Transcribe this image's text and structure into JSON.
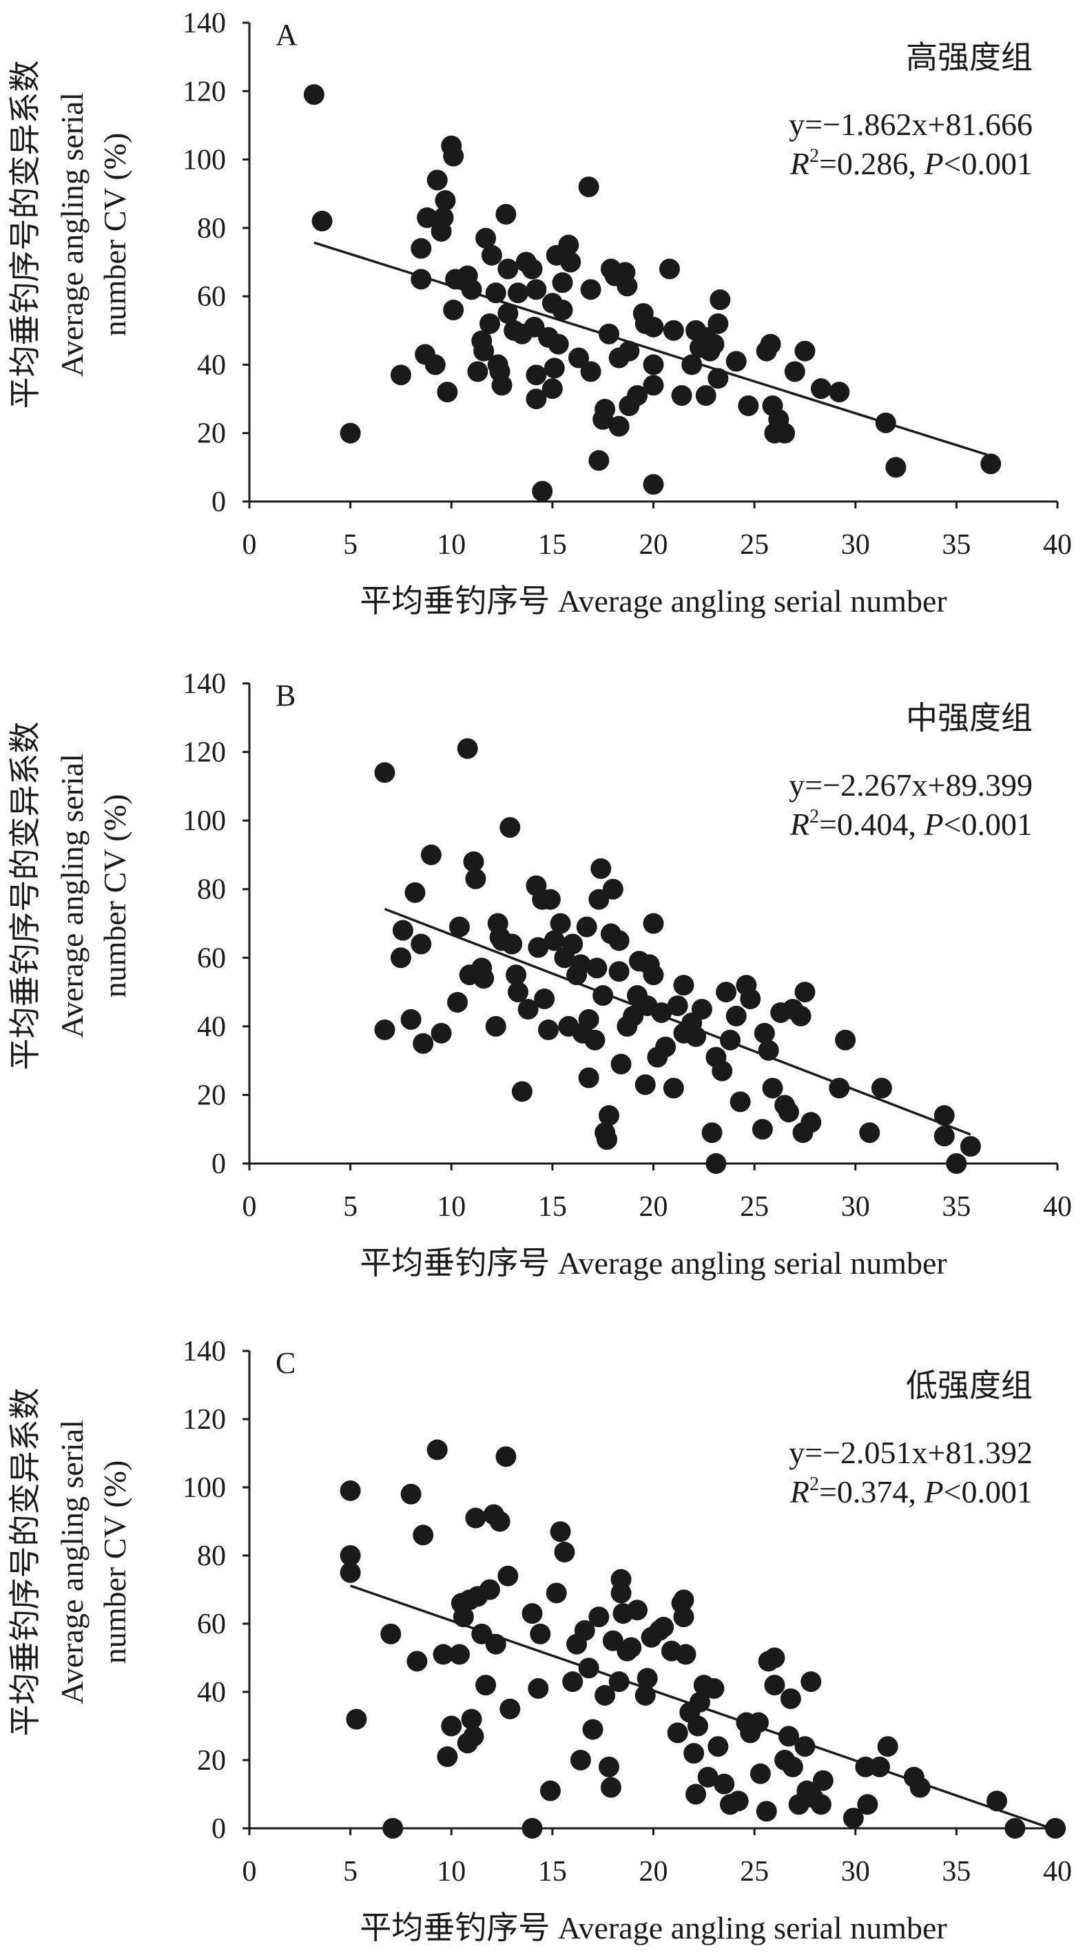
{
  "chart_data": [
    {
      "type": "scatter",
      "panel_label": "A",
      "group": "高强度组",
      "equation": "y=−1.862x+81.666",
      "slope": -1.862,
      "intercept": 81.666,
      "stats": {
        "r2_label": "R",
        "r2_sup": "2",
        "r2_text": "=0.286, ",
        "p_label": "P",
        "p_text": "<0.001"
      },
      "fit_range": [
        3.2,
        36.7
      ],
      "xlabel": "平均垂钓序号 Average angling serial number",
      "ylabel": [
        "平均垂钓序号的变异系数",
        "Average angling serial",
        "number CV (%)"
      ],
      "xlim": [
        0,
        40
      ],
      "ylim": [
        0,
        140
      ],
      "xticks": [
        "0",
        "5",
        "10",
        "15",
        "20",
        "25",
        "30",
        "35",
        "40"
      ],
      "yticks": [
        "0",
        "20",
        "40",
        "60",
        "80",
        "100",
        "120",
        "140"
      ],
      "points": [
        [
          3.2,
          119
        ],
        [
          3.6,
          82
        ],
        [
          5,
          20
        ],
        [
          7.5,
          37
        ],
        [
          8.5,
          65
        ],
        [
          8.5,
          74
        ],
        [
          8.7,
          43
        ],
        [
          8.8,
          83
        ],
        [
          9.2,
          40
        ],
        [
          9.3,
          94
        ],
        [
          9.5,
          79
        ],
        [
          9.6,
          83
        ],
        [
          9.7,
          88
        ],
        [
          9.8,
          32
        ],
        [
          10,
          104
        ],
        [
          10.1,
          101
        ],
        [
          10.1,
          56
        ],
        [
          10.2,
          65
        ],
        [
          10.8,
          66
        ],
        [
          11,
          62
        ],
        [
          11.3,
          38
        ],
        [
          11.5,
          47
        ],
        [
          11.6,
          44
        ],
        [
          11.7,
          77
        ],
        [
          11.9,
          52
        ],
        [
          12,
          72
        ],
        [
          12.2,
          61
        ],
        [
          12.3,
          40
        ],
        [
          12.4,
          38
        ],
        [
          12.5,
          34
        ],
        [
          12.7,
          84
        ],
        [
          12.8,
          68
        ],
        [
          12.8,
          55
        ],
        [
          13.1,
          50
        ],
        [
          13.3,
          61
        ],
        [
          13.5,
          49
        ],
        [
          13.7,
          70
        ],
        [
          14,
          68
        ],
        [
          14.1,
          51
        ],
        [
          14.2,
          62
        ],
        [
          14.2,
          37
        ],
        [
          14.2,
          30
        ],
        [
          14.5,
          3
        ],
        [
          14.8,
          48
        ],
        [
          15,
          58
        ],
        [
          15,
          33
        ],
        [
          15.1,
          39
        ],
        [
          15.2,
          72
        ],
        [
          15.3,
          46
        ],
        [
          15.5,
          64
        ],
        [
          15.5,
          56
        ],
        [
          15.8,
          75
        ],
        [
          15.9,
          70
        ],
        [
          16.3,
          42
        ],
        [
          16.8,
          92
        ],
        [
          16.9,
          38
        ],
        [
          16.9,
          62
        ],
        [
          17.3,
          12
        ],
        [
          17.5,
          24
        ],
        [
          17.6,
          27
        ],
        [
          17.8,
          49
        ],
        [
          17.9,
          68
        ],
        [
          18.1,
          66
        ],
        [
          18.3,
          42
        ],
        [
          18.3,
          22
        ],
        [
          18.6,
          67
        ],
        [
          18.7,
          63
        ],
        [
          18.8,
          44
        ],
        [
          18.8,
          28
        ],
        [
          19.2,
          31
        ],
        [
          19.5,
          55
        ],
        [
          19.6,
          52
        ],
        [
          20,
          51
        ],
        [
          20,
          40
        ],
        [
          20,
          34
        ],
        [
          20,
          5
        ],
        [
          20.8,
          68
        ],
        [
          21,
          50
        ],
        [
          21.4,
          31
        ],
        [
          21.9,
          40
        ],
        [
          22.1,
          50
        ],
        [
          22.3,
          45
        ],
        [
          22.6,
          48
        ],
        [
          22.6,
          31
        ],
        [
          22.8,
          44
        ],
        [
          23,
          46
        ],
        [
          23.2,
          36
        ],
        [
          23.2,
          52
        ],
        [
          23.3,
          59
        ],
        [
          24.1,
          41
        ],
        [
          24.7,
          28
        ],
        [
          25.6,
          44
        ],
        [
          25.8,
          46
        ],
        [
          25.9,
          28
        ],
        [
          26,
          20
        ],
        [
          26.2,
          24
        ],
        [
          26.5,
          20
        ],
        [
          27,
          38
        ],
        [
          27.5,
          44
        ],
        [
          28.3,
          33
        ],
        [
          29.2,
          32
        ],
        [
          31.5,
          23
        ],
        [
          32,
          10
        ],
        [
          36.7,
          11
        ]
      ]
    },
    {
      "type": "scatter",
      "panel_label": "B",
      "group": "中强度组",
      "equation": "y=−2.267x+89.399",
      "slope": -2.267,
      "intercept": 89.399,
      "stats": {
        "r2_label": "R",
        "r2_sup": "2",
        "r2_text": "=0.404, ",
        "p_label": "P",
        "p_text": "<0.001"
      },
      "fit_range": [
        6.7,
        35.7
      ],
      "xlabel": "平均垂钓序号 Average angling serial number",
      "ylabel": [
        "平均垂钓序号的变异系数",
        "Average angling serial",
        "number CV (%)"
      ],
      "xlim": [
        0,
        40
      ],
      "ylim": [
        0,
        140
      ],
      "xticks": [
        "0",
        "5",
        "10",
        "15",
        "20",
        "25",
        "30",
        "35",
        "40"
      ],
      "yticks": [
        "0",
        "20",
        "40",
        "60",
        "80",
        "100",
        "120",
        "140"
      ],
      "points": [
        [
          6.7,
          114
        ],
        [
          6.7,
          39
        ],
        [
          7.5,
          60
        ],
        [
          7.6,
          68
        ],
        [
          8,
          42
        ],
        [
          8.2,
          79
        ],
        [
          8.5,
          64
        ],
        [
          8.6,
          35
        ],
        [
          9,
          90
        ],
        [
          9.5,
          38
        ],
        [
          10.3,
          47
        ],
        [
          10.4,
          69
        ],
        [
          10.8,
          121
        ],
        [
          10.9,
          55
        ],
        [
          11.1,
          88
        ],
        [
          11.2,
          83
        ],
        [
          11.5,
          57
        ],
        [
          11.6,
          54
        ],
        [
          12.2,
          40
        ],
        [
          12.3,
          70
        ],
        [
          12.4,
          66
        ],
        [
          12.5,
          65
        ],
        [
          12.9,
          98
        ],
        [
          13,
          64
        ],
        [
          13.2,
          55
        ],
        [
          13.3,
          50
        ],
        [
          13.5,
          21
        ],
        [
          13.8,
          45
        ],
        [
          14.2,
          81
        ],
        [
          14.3,
          63
        ],
        [
          14.5,
          77
        ],
        [
          14.6,
          48
        ],
        [
          14.8,
          39
        ],
        [
          14.9,
          77
        ],
        [
          15.1,
          65
        ],
        [
          15.4,
          70
        ],
        [
          15.6,
          60
        ],
        [
          15.8,
          40
        ],
        [
          16,
          64
        ],
        [
          16.2,
          55
        ],
        [
          16.4,
          58
        ],
        [
          16.5,
          38
        ],
        [
          16.7,
          69
        ],
        [
          16.8,
          42
        ],
        [
          16.8,
          25
        ],
        [
          17.1,
          36
        ],
        [
          17.2,
          57
        ],
        [
          17.3,
          77
        ],
        [
          17.4,
          86
        ],
        [
          17.5,
          49
        ],
        [
          17.6,
          9
        ],
        [
          17.7,
          7
        ],
        [
          17.8,
          14
        ],
        [
          17.9,
          67
        ],
        [
          18,
          80
        ],
        [
          18.3,
          65
        ],
        [
          18.3,
          56
        ],
        [
          18.4,
          29
        ],
        [
          18.7,
          40
        ],
        [
          19,
          43
        ],
        [
          19.2,
          49
        ],
        [
          19.3,
          59
        ],
        [
          19.6,
          23
        ],
        [
          19.7,
          46
        ],
        [
          19.8,
          58
        ],
        [
          20,
          55
        ],
        [
          20,
          70
        ],
        [
          20.2,
          31
        ],
        [
          20.4,
          44
        ],
        [
          20.6,
          34
        ],
        [
          21,
          22
        ],
        [
          21.2,
          46
        ],
        [
          21.5,
          52
        ],
        [
          21.5,
          38
        ],
        [
          21.9,
          41
        ],
        [
          22.1,
          37
        ],
        [
          22.4,
          45
        ],
        [
          22.9,
          9
        ],
        [
          23.1,
          31
        ],
        [
          23.1,
          0
        ],
        [
          23.4,
          27
        ],
        [
          23.6,
          50
        ],
        [
          23.8,
          36
        ],
        [
          24.1,
          43
        ],
        [
          24.3,
          18
        ],
        [
          24.6,
          52
        ],
        [
          24.8,
          48
        ],
        [
          25.4,
          10
        ],
        [
          25.5,
          38
        ],
        [
          25.7,
          33
        ],
        [
          25.9,
          22
        ],
        [
          26.3,
          44
        ],
        [
          26.5,
          17
        ],
        [
          26.7,
          15
        ],
        [
          26.9,
          45
        ],
        [
          27.3,
          43
        ],
        [
          27.4,
          9
        ],
        [
          27.5,
          50
        ],
        [
          27.8,
          12
        ],
        [
          29.2,
          22
        ],
        [
          29.5,
          36
        ],
        [
          30.7,
          9
        ],
        [
          31.3,
          22
        ],
        [
          34.4,
          14
        ],
        [
          34.4,
          8
        ],
        [
          35,
          0
        ],
        [
          35.7,
          5
        ]
      ]
    },
    {
      "type": "scatter",
      "panel_label": "C",
      "group": "低强度组",
      "equation": "y=−2.051x+81.392",
      "slope": -2.051,
      "intercept": 81.392,
      "stats": {
        "r2_label": "R",
        "r2_sup": "2",
        "r2_text": "=0.374, ",
        "p_label": "P",
        "p_text": "<0.001"
      },
      "fit_range": [
        5,
        39.9
      ],
      "xlabel": "平均垂钓序号 Average angling serial number",
      "ylabel": [
        "平均垂钓序号的变异系数",
        "Average angling serial",
        "number CV (%)"
      ],
      "xlim": [
        0,
        40
      ],
      "ylim": [
        0,
        140
      ],
      "xticks": [
        "0",
        "5",
        "10",
        "15",
        "20",
        "25",
        "30",
        "35",
        "40"
      ],
      "yticks": [
        "0",
        "20",
        "40",
        "60",
        "80",
        "100",
        "120",
        "140"
      ],
      "points": [
        [
          5,
          99
        ],
        [
          5,
          80
        ],
        [
          5,
          75
        ],
        [
          5.3,
          32
        ],
        [
          7,
          57
        ],
        [
          7.1,
          0
        ],
        [
          8,
          98
        ],
        [
          8.3,
          49
        ],
        [
          8.6,
          86
        ],
        [
          9.3,
          111
        ],
        [
          9.6,
          51
        ],
        [
          9.8,
          21
        ],
        [
          10,
          30
        ],
        [
          10.4,
          51
        ],
        [
          10.5,
          66
        ],
        [
          10.6,
          62
        ],
        [
          10.8,
          25
        ],
        [
          10.9,
          67
        ],
        [
          11,
          32
        ],
        [
          11.1,
          27
        ],
        [
          11.2,
          91
        ],
        [
          11.3,
          68
        ],
        [
          11.5,
          57
        ],
        [
          11.7,
          42
        ],
        [
          11.9,
          70
        ],
        [
          12.1,
          92
        ],
        [
          12.2,
          54
        ],
        [
          12.4,
          90
        ],
        [
          12.7,
          109
        ],
        [
          12.8,
          74
        ],
        [
          12.9,
          35
        ],
        [
          14,
          63
        ],
        [
          14,
          0
        ],
        [
          14.3,
          41
        ],
        [
          14.4,
          57
        ],
        [
          14.9,
          11
        ],
        [
          15.2,
          69
        ],
        [
          15.4,
          87
        ],
        [
          15.6,
          81
        ],
        [
          16,
          43
        ],
        [
          16.2,
          54
        ],
        [
          16.4,
          20
        ],
        [
          16.6,
          58
        ],
        [
          16.8,
          47
        ],
        [
          17,
          29
        ],
        [
          17.3,
          62
        ],
        [
          17.6,
          39
        ],
        [
          17.8,
          18
        ],
        [
          17.9,
          12
        ],
        [
          18,
          55
        ],
        [
          18.3,
          43
        ],
        [
          18.4,
          73
        ],
        [
          18.4,
          69
        ],
        [
          18.5,
          63
        ],
        [
          18.7,
          52
        ],
        [
          18.9,
          53
        ],
        [
          19.2,
          64
        ],
        [
          19.6,
          39
        ],
        [
          19.7,
          44
        ],
        [
          19.9,
          56
        ],
        [
          20.3,
          58
        ],
        [
          20.5,
          59
        ],
        [
          20.9,
          52
        ],
        [
          21.2,
          28
        ],
        [
          21.4,
          66
        ],
        [
          21.5,
          67
        ],
        [
          21.5,
          62
        ],
        [
          21.6,
          51
        ],
        [
          21.8,
          34
        ],
        [
          22,
          22
        ],
        [
          22.1,
          10
        ],
        [
          22.2,
          30
        ],
        [
          22.3,
          37
        ],
        [
          22.5,
          42
        ],
        [
          22.7,
          15
        ],
        [
          23,
          41
        ],
        [
          23.2,
          24
        ],
        [
          23.5,
          13
        ],
        [
          23.8,
          7
        ],
        [
          24.2,
          8
        ],
        [
          24.6,
          31
        ],
        [
          24.8,
          28
        ],
        [
          25.2,
          31
        ],
        [
          25.3,
          16
        ],
        [
          25.6,
          5
        ],
        [
          25.7,
          49
        ],
        [
          26,
          50
        ],
        [
          26,
          42
        ],
        [
          26.5,
          20
        ],
        [
          26.7,
          27
        ],
        [
          26.8,
          38
        ],
        [
          26.9,
          18
        ],
        [
          27.2,
          7
        ],
        [
          27.5,
          24
        ],
        [
          27.6,
          11
        ],
        [
          27.8,
          43
        ],
        [
          27.9,
          9
        ],
        [
          28.4,
          14
        ],
        [
          28.3,
          7
        ],
        [
          29.9,
          3
        ],
        [
          30.5,
          18
        ],
        [
          30.6,
          7
        ],
        [
          31.2,
          18
        ],
        [
          31.6,
          24
        ],
        [
          32.9,
          15
        ],
        [
          33.2,
          12
        ],
        [
          37,
          8
        ],
        [
          37.9,
          0
        ],
        [
          39.9,
          0
        ]
      ]
    }
  ],
  "colors": {
    "ink": "#1a1a1a",
    "background": "#ffffff"
  }
}
